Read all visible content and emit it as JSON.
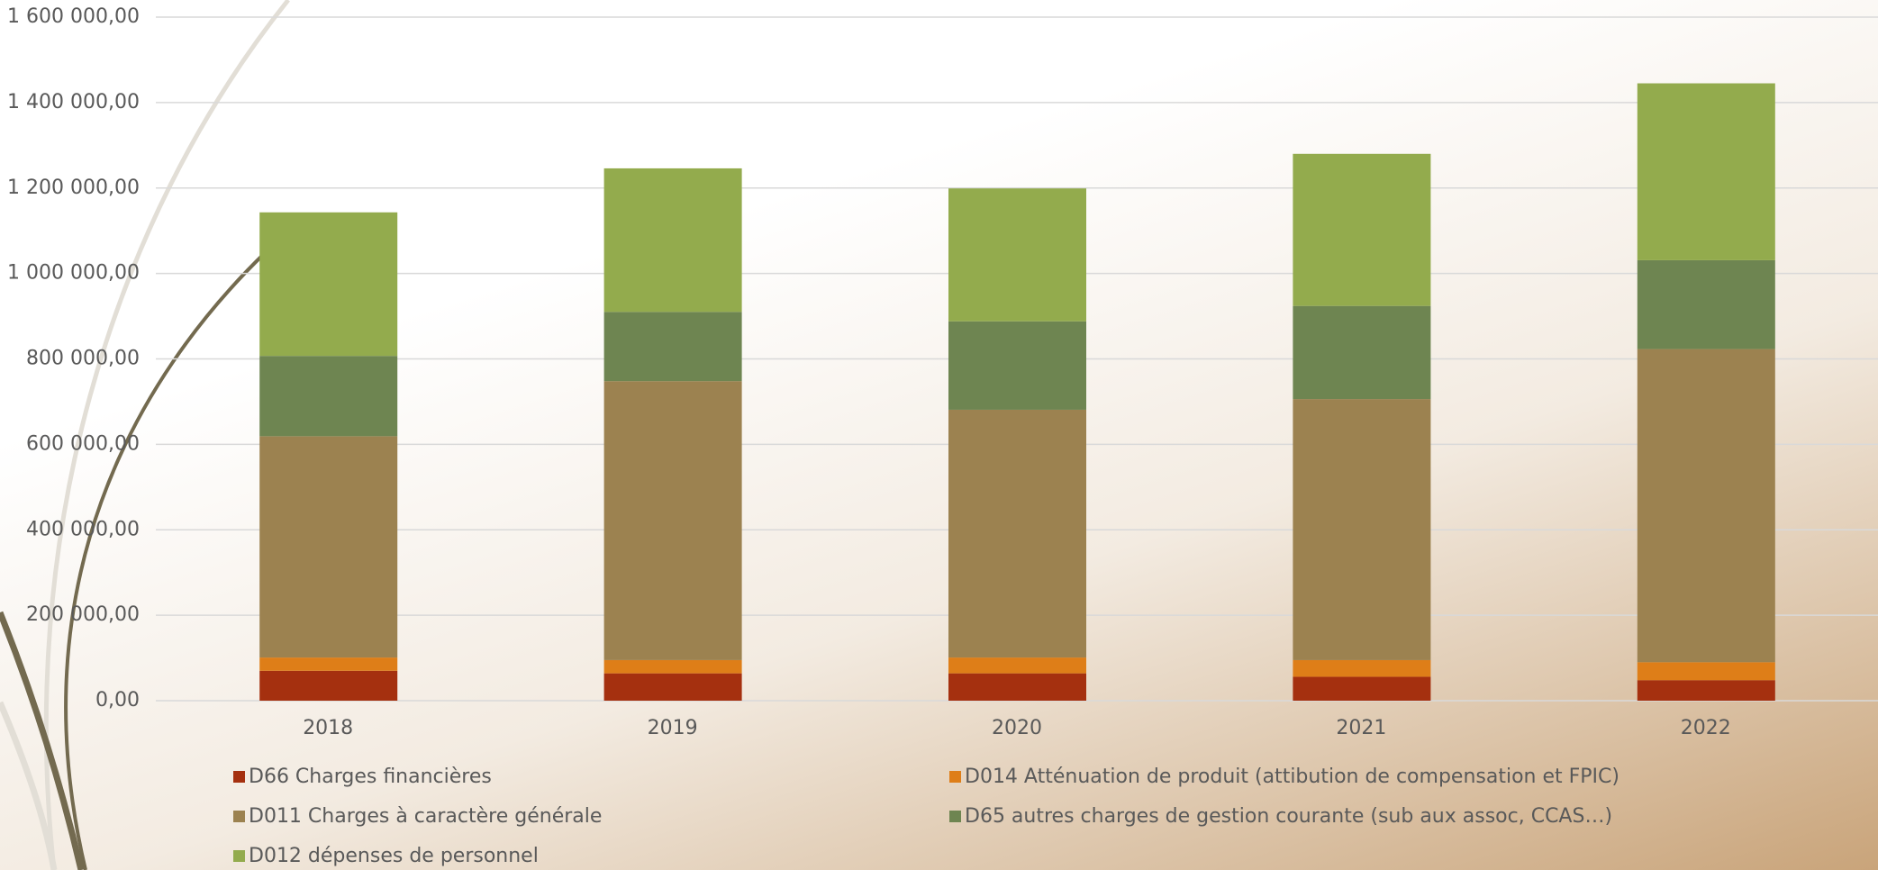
{
  "chart_data": {
    "type": "stacked_bar",
    "categories": [
      "2018",
      "2019",
      "2020",
      "2021",
      "2022"
    ],
    "series": [
      {
        "name": "D66 Charges financières",
        "color": "#a5300f",
        "values": [
          70000,
          64000,
          64000,
          56000,
          48000
        ]
      },
      {
        "name": "D014 Atténuation de produit (attibution de compensation et FPIC)",
        "color": "#de7e18",
        "values": [
          31000,
          31000,
          37000,
          39000,
          42000
        ]
      },
      {
        "name": "D011 Charges à caractère générale",
        "color": "#9c8250",
        "values": [
          518000,
          653000,
          580000,
          611000,
          733000
        ]
      },
      {
        "name": "D65 autres charges de gestion courante (sub aux assoc, CCAS…)",
        "color": "#6e8551",
        "values": [
          188000,
          162000,
          207000,
          218000,
          208000
        ]
      },
      {
        "name": "D012 dépenses de personnel",
        "color": "#93ab4d",
        "values": [
          336000,
          336000,
          311000,
          356000,
          414000
        ]
      }
    ],
    "ylim": [
      0,
      1600000
    ],
    "yticks": [
      {
        "value": 0,
        "label": "0,00"
      },
      {
        "value": 200000,
        "label": "200 000,00"
      },
      {
        "value": 400000,
        "label": "400 000,00"
      },
      {
        "value": 600000,
        "label": "600 000,00"
      },
      {
        "value": 800000,
        "label": "800 000,00"
      },
      {
        "value": 1000000,
        "label": "1 000 000,00"
      },
      {
        "value": 1200000,
        "label": "1 200 000,00"
      },
      {
        "value": 1400000,
        "label": "1 400 000,00"
      },
      {
        "value": 1600000,
        "label": "1 600 000,00"
      }
    ],
    "grid": true
  }
}
